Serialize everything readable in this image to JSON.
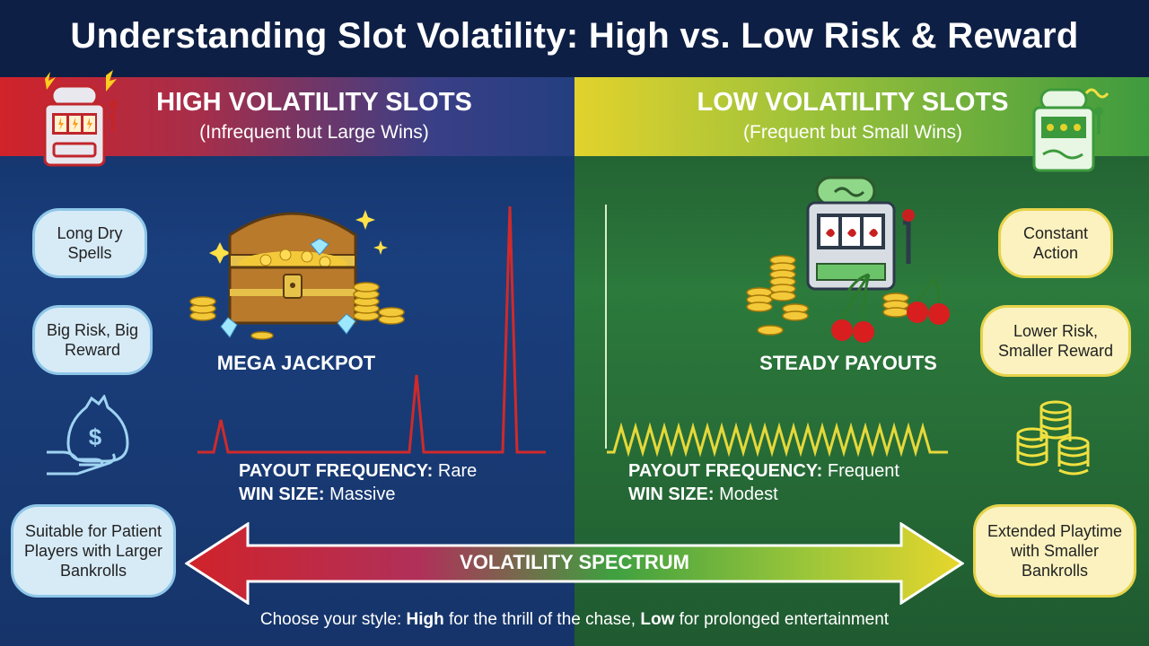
{
  "title": "Understanding Slot Volatility: High vs. Low Risk & Reward",
  "high": {
    "heading": "HIGH VOLATILITY SLOTS",
    "subheading": "(Infrequent but Large Wins)",
    "pills": [
      "Long Dry Spells",
      "Big Risk, Big Reward",
      "Suitable for Patient Players with Larger Bankrolls"
    ],
    "feature_label": "MEGA JACKPOT",
    "frequency_label": "PAYOUT FREQUENCY:",
    "frequency_value": "Rare",
    "size_label": "WIN SIZE:",
    "size_value": "Massive"
  },
  "low": {
    "heading": "LOW VOLATILITY SLOTS",
    "subheading": "(Frequent but Small Wins)",
    "pills": [
      "Constant Action",
      "Lower Risk, Smaller Reward",
      "Extended Playtime with Smaller Bankrolls"
    ],
    "feature_label": "STEADY PAYOUTS",
    "frequency_label": "PAYOUT FREQUENCY:",
    "frequency_value": "Frequent",
    "size_label": "WIN SIZE:",
    "size_value": "Modest"
  },
  "spectrum_label": "VOLATILITY SPECTRUM",
  "footer": {
    "prefix": "Choose your style: ",
    "high_word": "High",
    "middle": " for the thrill of the chase, ",
    "low_word": "Low",
    "suffix": " for prolonged entertainment"
  },
  "colors": {
    "high_accent": "#d0232a",
    "low_accent": "#e2d22c",
    "left_bg": "#1a3f7d",
    "right_bg": "#2c7a3c"
  },
  "icons": [
    "slot-machine-icon",
    "treasure-chest-icon",
    "money-bag-hand-icon",
    "coin-stack-icon",
    "cherry-icon"
  ]
}
